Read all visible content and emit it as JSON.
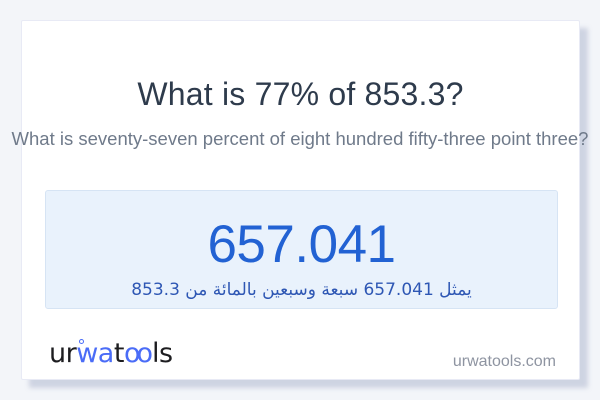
{
  "card": {
    "title": "What is 77% of 853.3?",
    "subtitle": "What is seventy-seven percent of eight hundred fifty-three point three?",
    "result": {
      "value": "657.041",
      "description_ar": "يمثل 657.041 سبعة وسبعين بالمائة من 853.3"
    },
    "footer": {
      "logo": {
        "seg_ur": "ur",
        "seg_wa": "wa",
        "seg_t": "t",
        "seg_oo": "oo",
        "seg_ls": "ls"
      },
      "domain": "urwatools.com"
    }
  },
  "colors": {
    "page_bg": "#f3f5f9",
    "card_bg": "#ffffff",
    "card_border": "#e8eaf5",
    "title_text": "#2e3b4c",
    "subtitle_text": "#6f7a8a",
    "result_box_bg": "#e9f2fc",
    "result_box_border": "#d6e4f4",
    "result_value_text": "#2262d3",
    "result_desc_text": "#2e57b4",
    "logo_dark": "#1d1d20",
    "logo_blue": "#4a6cf7",
    "domain_text": "#8e94a1"
  }
}
